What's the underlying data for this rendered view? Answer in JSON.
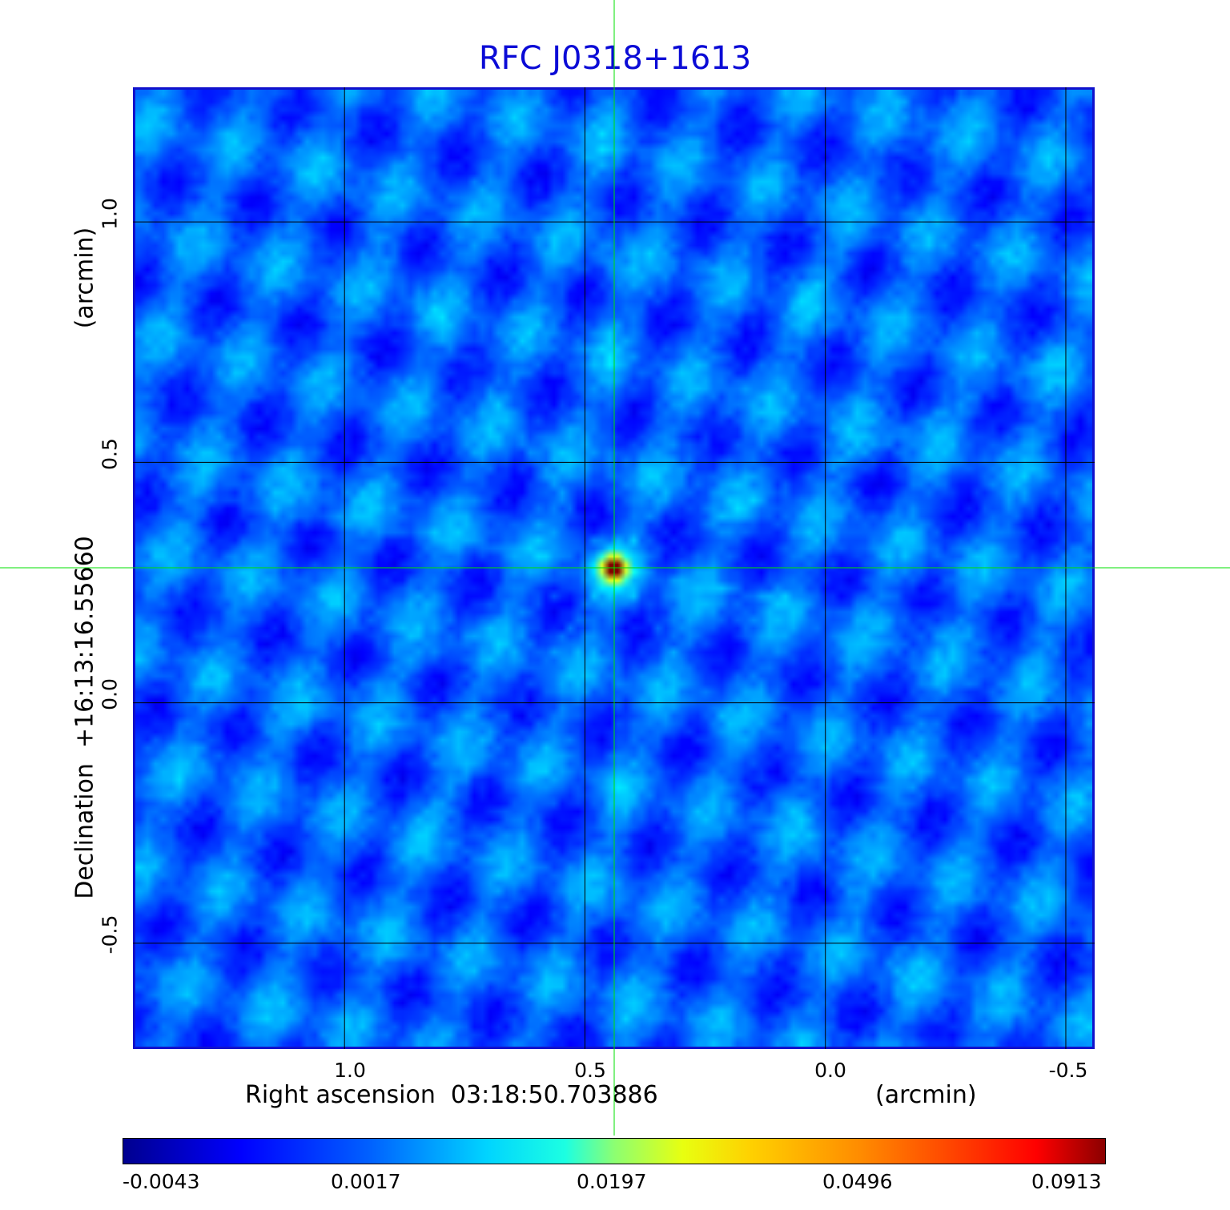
{
  "chart_data": {
    "type": "heatmap",
    "title": "RFC J0318+1613",
    "xlabel": "Right ascension  03:18:50.703886",
    "xunit": "(arcmin)",
    "ylabel": "Declination  +16:13:16.55660",
    "yunit": "(arcmin)",
    "x_ticks": [
      "1.0",
      "0.5",
      "0.0",
      "-0.5"
    ],
    "y_ticks": [
      "1.0",
      "0.5",
      "0.0",
      "-0.5"
    ],
    "xlim": [
      1.44,
      -0.56
    ],
    "ylim": [
      -0.72,
      1.28
    ],
    "grid": true,
    "peak": {
      "x": 0.44,
      "y": 0.28,
      "value": 0.0913
    },
    "colormap": "jet",
    "colorbar": {
      "position": "bottom",
      "ticks": [
        "-0.0043",
        "0.0017",
        "0.0197",
        "0.0496",
        "0.0913"
      ],
      "range": [
        -0.0043,
        0.0913
      ]
    },
    "colors": {
      "title": "#0b0bd6",
      "frame": "#1111cc",
      "grid": "#000000",
      "crosshair": "#00e000"
    }
  }
}
